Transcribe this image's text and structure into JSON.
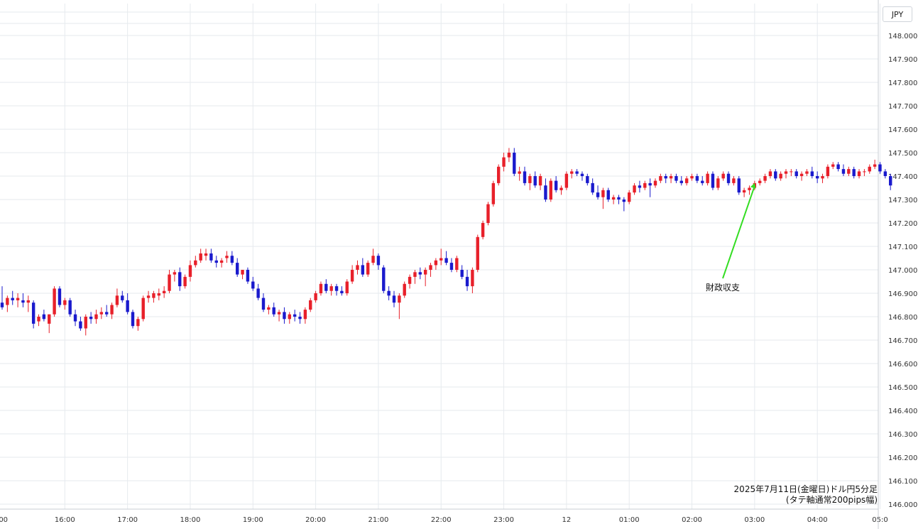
{
  "symbol": "JPY",
  "caption": {
    "line1": "2025年7月11日(金曜日)ドル円5分足",
    "line2": "(タテ軸通常200pips幅)"
  },
  "colors": {
    "up": "#e8202a",
    "down": "#1a1acd",
    "annotation_arrow": "#33dd22",
    "grid": "#e6eaee"
  },
  "chart_data": {
    "type": "candlestick",
    "title": "2025年7月11日(金曜日)ドル円5分足",
    "subtitle": "(タテ軸通常200pips幅)",
    "ylim": [
      146.0,
      148.0
    ],
    "y_ticks": [
      "146.000",
      "146.100",
      "146.200",
      "146.300",
      "146.400",
      "146.500",
      "146.600",
      "146.700",
      "146.800",
      "146.900",
      "147.000",
      "147.100",
      "147.200",
      "147.300",
      "147.400",
      "147.500",
      "147.600",
      "147.700",
      "147.800",
      "147.900",
      "148.000"
    ],
    "x_ticks": [
      {
        "label": ":00",
        "t": 0
      },
      {
        "label": "16:00",
        "t": 12
      },
      {
        "label": "17:00",
        "t": 24
      },
      {
        "label": "18:00",
        "t": 36
      },
      {
        "label": "19:00",
        "t": 48
      },
      {
        "label": "20:00",
        "t": 60
      },
      {
        "label": "21:00",
        "t": 72
      },
      {
        "label": "22:00",
        "t": 84
      },
      {
        "label": "23:00",
        "t": 96
      },
      {
        "label": "12",
        "t": 108
      },
      {
        "label": "01:00",
        "t": 120
      },
      {
        "label": "02:00",
        "t": 132
      },
      {
        "label": "03:00",
        "t": 144
      },
      {
        "label": "04:00",
        "t": 156
      },
      {
        "label": "05:0",
        "t": 168
      }
    ],
    "annotations": [
      {
        "text": "財政収支",
        "target_t": 144,
        "target_price": 147.37
      }
    ],
    "ohlc": [
      [
        146.86,
        146.93,
        146.83,
        146.84
      ],
      [
        146.85,
        146.89,
        146.82,
        146.88
      ],
      [
        146.88,
        146.91,
        146.85,
        146.87
      ],
      [
        146.87,
        146.9,
        146.84,
        146.88
      ],
      [
        146.87,
        146.9,
        146.84,
        146.86
      ],
      [
        146.86,
        146.89,
        146.82,
        146.87
      ],
      [
        146.86,
        146.87,
        146.75,
        146.77
      ],
      [
        146.78,
        146.81,
        146.76,
        146.8
      ],
      [
        146.81,
        146.83,
        146.78,
        146.79
      ],
      [
        146.77,
        146.81,
        146.73,
        146.81
      ],
      [
        146.81,
        146.93,
        146.8,
        146.92
      ],
      [
        146.92,
        146.93,
        146.84,
        146.85
      ],
      [
        146.85,
        146.88,
        146.83,
        146.87
      ],
      [
        146.87,
        146.88,
        146.8,
        146.81
      ],
      [
        146.81,
        146.83,
        146.76,
        146.78
      ],
      [
        146.78,
        146.8,
        146.74,
        146.75
      ],
      [
        146.75,
        146.81,
        146.72,
        146.8
      ],
      [
        146.8,
        146.82,
        146.77,
        146.79
      ],
      [
        146.79,
        146.83,
        146.77,
        146.81
      ],
      [
        146.81,
        146.84,
        146.79,
        146.82
      ],
      [
        146.82,
        146.85,
        146.8,
        146.81
      ],
      [
        146.81,
        146.86,
        146.79,
        146.85
      ],
      [
        146.85,
        146.92,
        146.84,
        146.89
      ],
      [
        146.89,
        146.91,
        146.86,
        146.87
      ],
      [
        146.87,
        146.9,
        146.81,
        146.82
      ],
      [
        146.82,
        146.83,
        146.75,
        146.76
      ],
      [
        146.76,
        146.8,
        146.74,
        146.79
      ],
      [
        146.79,
        146.89,
        146.78,
        146.88
      ],
      [
        146.88,
        146.91,
        146.86,
        146.89
      ],
      [
        146.88,
        146.91,
        146.86,
        146.9
      ],
      [
        146.89,
        146.92,
        146.87,
        146.9
      ],
      [
        146.9,
        146.93,
        146.88,
        146.91
      ],
      [
        146.91,
        147.0,
        146.9,
        146.98
      ],
      [
        146.98,
        147.0,
        146.95,
        146.99
      ],
      [
        146.99,
        147.01,
        146.91,
        146.93
      ],
      [
        146.93,
        146.98,
        146.92,
        146.97
      ],
      [
        146.97,
        147.04,
        146.95,
        147.02
      ],
      [
        147.02,
        147.06,
        147.01,
        147.04
      ],
      [
        147.04,
        147.09,
        147.03,
        147.07
      ],
      [
        147.06,
        147.09,
        147.04,
        147.07
      ],
      [
        147.07,
        147.09,
        147.03,
        147.04
      ],
      [
        147.04,
        147.06,
        147.01,
        147.03
      ],
      [
        147.03,
        147.05,
        147.01,
        147.04
      ],
      [
        147.05,
        147.08,
        147.03,
        147.06
      ],
      [
        147.06,
        147.08,
        147.02,
        147.03
      ],
      [
        147.03,
        147.05,
        146.97,
        146.98
      ],
      [
        146.98,
        147.0,
        146.96,
        147.0
      ],
      [
        147.0,
        147.01,
        146.94,
        146.95
      ],
      [
        146.95,
        146.97,
        146.91,
        146.92
      ],
      [
        146.92,
        146.94,
        146.87,
        146.88
      ],
      [
        146.88,
        146.9,
        146.82,
        146.83
      ],
      [
        146.83,
        146.85,
        146.81,
        146.84
      ],
      [
        146.84,
        146.86,
        146.8,
        146.81
      ],
      [
        146.81,
        146.83,
        146.78,
        146.82
      ],
      [
        146.82,
        146.84,
        146.77,
        146.79
      ],
      [
        146.79,
        146.82,
        146.77,
        146.81
      ],
      [
        146.81,
        146.83,
        146.78,
        146.8
      ],
      [
        146.8,
        146.82,
        146.77,
        146.79
      ],
      [
        146.79,
        146.84,
        146.77,
        146.83
      ],
      [
        146.83,
        146.88,
        146.82,
        146.87
      ],
      [
        146.87,
        146.91,
        146.86,
        146.9
      ],
      [
        146.9,
        146.95,
        146.89,
        146.94
      ],
      [
        146.94,
        146.96,
        146.9,
        146.91
      ],
      [
        146.91,
        146.94,
        146.89,
        146.93
      ],
      [
        146.93,
        146.94,
        146.89,
        146.91
      ],
      [
        146.91,
        146.93,
        146.89,
        146.9
      ],
      [
        146.9,
        146.96,
        146.89,
        146.95
      ],
      [
        146.95,
        147.02,
        146.94,
        147.0
      ],
      [
        147.0,
        147.04,
        146.98,
        147.02
      ],
      [
        147.02,
        147.05,
        146.97,
        146.98
      ],
      [
        146.98,
        147.04,
        146.97,
        147.03
      ],
      [
        147.03,
        147.09,
        147.02,
        147.06
      ],
      [
        147.06,
        147.07,
        147.0,
        147.02
      ],
      [
        147.01,
        147.02,
        146.9,
        146.91
      ],
      [
        146.91,
        146.93,
        146.87,
        146.89
      ],
      [
        146.89,
        146.91,
        146.84,
        146.86
      ],
      [
        146.86,
        146.9,
        146.79,
        146.89
      ],
      [
        146.89,
        146.95,
        146.88,
        146.94
      ],
      [
        146.94,
        146.98,
        146.92,
        146.97
      ],
      [
        146.97,
        147.0,
        146.94,
        146.99
      ],
      [
        146.99,
        147.01,
        146.96,
        146.98
      ],
      [
        146.98,
        147.01,
        146.93,
        147.0
      ],
      [
        147.0,
        147.03,
        146.97,
        147.02
      ],
      [
        147.02,
        147.05,
        147.0,
        147.04
      ],
      [
        147.04,
        147.09,
        147.02,
        147.05
      ],
      [
        147.05,
        147.08,
        147.02,
        147.03
      ],
      [
        147.03,
        147.05,
        146.99,
        147.0
      ],
      [
        147.0,
        147.06,
        146.99,
        147.05
      ],
      [
        147.0,
        147.02,
        146.96,
        146.97
      ],
      [
        146.97,
        147.0,
        146.91,
        146.93
      ],
      [
        146.93,
        147.01,
        146.9,
        147.0
      ],
      [
        147.0,
        147.15,
        146.99,
        147.14
      ],
      [
        147.14,
        147.21,
        147.13,
        147.2
      ],
      [
        147.2,
        147.29,
        147.19,
        147.28
      ],
      [
        147.28,
        147.38,
        147.27,
        147.37
      ],
      [
        147.37,
        147.45,
        147.36,
        147.44
      ],
      [
        147.44,
        147.5,
        147.42,
        147.48
      ],
      [
        147.48,
        147.52,
        147.46,
        147.5
      ],
      [
        147.5,
        147.52,
        147.4,
        147.41
      ],
      [
        147.41,
        147.44,
        147.38,
        147.42
      ],
      [
        147.42,
        147.44,
        147.36,
        147.37
      ],
      [
        147.37,
        147.41,
        147.34,
        147.4
      ],
      [
        147.4,
        147.42,
        147.35,
        147.36
      ],
      [
        147.36,
        147.41,
        147.34,
        147.4
      ],
      [
        147.36,
        147.39,
        147.29,
        147.3
      ],
      [
        147.3,
        147.39,
        147.29,
        147.38
      ],
      [
        147.38,
        147.4,
        147.33,
        147.34
      ],
      [
        147.34,
        147.36,
        147.32,
        147.35
      ],
      [
        147.35,
        147.42,
        147.34,
        147.41
      ],
      [
        147.41,
        147.43,
        147.39,
        147.42
      ],
      [
        147.42,
        147.43,
        147.4,
        147.41
      ],
      [
        147.41,
        147.42,
        147.38,
        147.4
      ],
      [
        147.4,
        147.41,
        147.36,
        147.37
      ],
      [
        147.37,
        147.39,
        147.32,
        147.33
      ],
      [
        147.33,
        147.36,
        147.3,
        147.31
      ],
      [
        147.31,
        147.35,
        147.26,
        147.34
      ],
      [
        147.34,
        147.35,
        147.29,
        147.3
      ],
      [
        147.3,
        147.32,
        147.28,
        147.31
      ],
      [
        147.31,
        147.32,
        147.28,
        147.3
      ],
      [
        147.3,
        147.31,
        147.25,
        147.29
      ],
      [
        147.29,
        147.34,
        147.28,
        147.33
      ],
      [
        147.33,
        147.37,
        147.32,
        147.36
      ],
      [
        147.36,
        147.38,
        147.33,
        147.35
      ],
      [
        147.35,
        147.38,
        147.34,
        147.37
      ],
      [
        147.37,
        147.39,
        147.31,
        147.36
      ],
      [
        147.36,
        147.39,
        147.35,
        147.38
      ],
      [
        147.38,
        147.41,
        147.37,
        147.4
      ],
      [
        147.4,
        147.41,
        147.37,
        147.39
      ],
      [
        147.39,
        147.41,
        147.37,
        147.4
      ],
      [
        147.4,
        147.41,
        147.37,
        147.38
      ],
      [
        147.38,
        147.4,
        147.36,
        147.37
      ],
      [
        147.37,
        147.4,
        147.36,
        147.39
      ],
      [
        147.39,
        147.41,
        147.38,
        147.4
      ],
      [
        147.4,
        147.41,
        147.37,
        147.38
      ],
      [
        147.38,
        147.4,
        147.36,
        147.37
      ],
      [
        147.37,
        147.42,
        147.36,
        147.41
      ],
      [
        147.41,
        147.42,
        147.34,
        147.35
      ],
      [
        147.35,
        147.4,
        147.34,
        147.39
      ],
      [
        147.39,
        147.42,
        147.38,
        147.41
      ],
      [
        147.41,
        147.42,
        147.36,
        147.37
      ],
      [
        147.37,
        147.4,
        147.36,
        147.39
      ],
      [
        147.39,
        147.4,
        147.32,
        147.33
      ],
      [
        147.33,
        147.35,
        147.31,
        147.34
      ],
      [
        147.34,
        147.36,
        147.32,
        147.35
      ],
      [
        147.35,
        147.38,
        147.34,
        147.37
      ],
      [
        147.37,
        147.39,
        147.36,
        147.38
      ],
      [
        147.38,
        147.41,
        147.37,
        147.4
      ],
      [
        147.4,
        147.43,
        147.39,
        147.42
      ],
      [
        147.42,
        147.43,
        147.38,
        147.39
      ],
      [
        147.39,
        147.42,
        147.38,
        147.41
      ],
      [
        147.41,
        147.43,
        147.39,
        147.42
      ],
      [
        147.42,
        147.43,
        147.4,
        147.42
      ],
      [
        147.42,
        147.43,
        147.39,
        147.4
      ],
      [
        147.4,
        147.42,
        147.38,
        147.41
      ],
      [
        147.41,
        147.43,
        147.4,
        147.42
      ],
      [
        147.42,
        147.44,
        147.39,
        147.4
      ],
      [
        147.4,
        147.42,
        147.37,
        147.39
      ],
      [
        147.39,
        147.41,
        147.37,
        147.4
      ],
      [
        147.4,
        147.45,
        147.39,
        147.44
      ],
      [
        147.44,
        147.46,
        147.43,
        147.45
      ],
      [
        147.45,
        147.46,
        147.42,
        147.43
      ],
      [
        147.43,
        147.45,
        147.4,
        147.41
      ],
      [
        147.41,
        147.44,
        147.4,
        147.43
      ],
      [
        147.43,
        147.44,
        147.39,
        147.4
      ],
      [
        147.4,
        147.43,
        147.39,
        147.42
      ],
      [
        147.42,
        147.43,
        147.4,
        147.42
      ],
      [
        147.42,
        147.45,
        147.41,
        147.44
      ],
      [
        147.44,
        147.47,
        147.43,
        147.45
      ],
      [
        147.45,
        147.46,
        147.41,
        147.42
      ],
      [
        147.42,
        147.43,
        147.39,
        147.4
      ],
      [
        147.4,
        147.41,
        147.34,
        147.36
      ]
    ]
  }
}
